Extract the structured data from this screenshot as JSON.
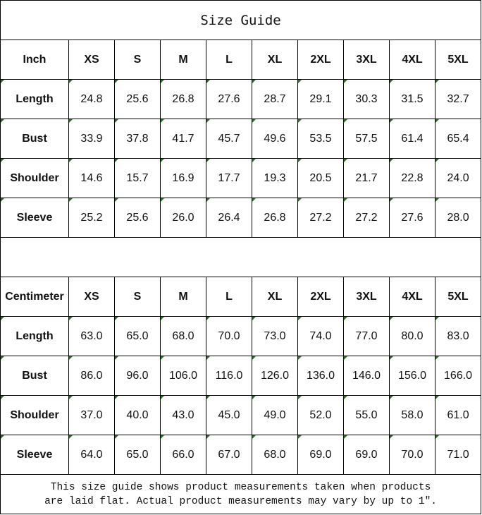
{
  "title": "Size Guide",
  "sizes": [
    "XS",
    "S",
    "M",
    "L",
    "XL",
    "2XL",
    "3XL",
    "4XL",
    "5XL"
  ],
  "tables": [
    {
      "unit": "Inch",
      "rows": [
        {
          "label": "Length",
          "values": [
            "24.8",
            "25.6",
            "26.8",
            "27.6",
            "28.7",
            "29.1",
            "30.3",
            "31.5",
            "32.7"
          ]
        },
        {
          "label": "Bust",
          "values": [
            "33.9",
            "37.8",
            "41.7",
            "45.7",
            "49.6",
            "53.5",
            "57.5",
            "61.4",
            "65.4"
          ]
        },
        {
          "label": "Shoulder",
          "values": [
            "14.6",
            "15.7",
            "16.9",
            "17.7",
            "19.3",
            "20.5",
            "21.7",
            "22.8",
            "24.0"
          ]
        },
        {
          "label": "Sleeve",
          "values": [
            "25.2",
            "25.6",
            "26.0",
            "26.4",
            "26.8",
            "27.2",
            "27.2",
            "27.6",
            "28.0"
          ]
        }
      ]
    },
    {
      "unit": "Centimeter",
      "rows": [
        {
          "label": "Length",
          "values": [
            "63.0",
            "65.0",
            "68.0",
            "70.0",
            "73.0",
            "74.0",
            "77.0",
            "80.0",
            "83.0"
          ]
        },
        {
          "label": "Bust",
          "values": [
            "86.0",
            "96.0",
            "106.0",
            "116.0",
            "126.0",
            "136.0",
            "146.0",
            "156.0",
            "166.0"
          ]
        },
        {
          "label": "Shoulder",
          "values": [
            "37.0",
            "40.0",
            "43.0",
            "45.0",
            "49.0",
            "52.0",
            "55.0",
            "58.0",
            "61.0"
          ]
        },
        {
          "label": "Sleeve",
          "values": [
            "64.0",
            "65.0",
            "66.0",
            "67.0",
            "68.0",
            "69.0",
            "69.0",
            "70.0",
            "71.0"
          ]
        }
      ]
    }
  ],
  "note": {
    "line1": "This size guide shows product measurements taken when products",
    "line2": "are laid flat. Actual product measurements may vary by up to 1″."
  },
  "colors": {
    "corner_marker": "#1a7a1a",
    "border": "#000000"
  }
}
